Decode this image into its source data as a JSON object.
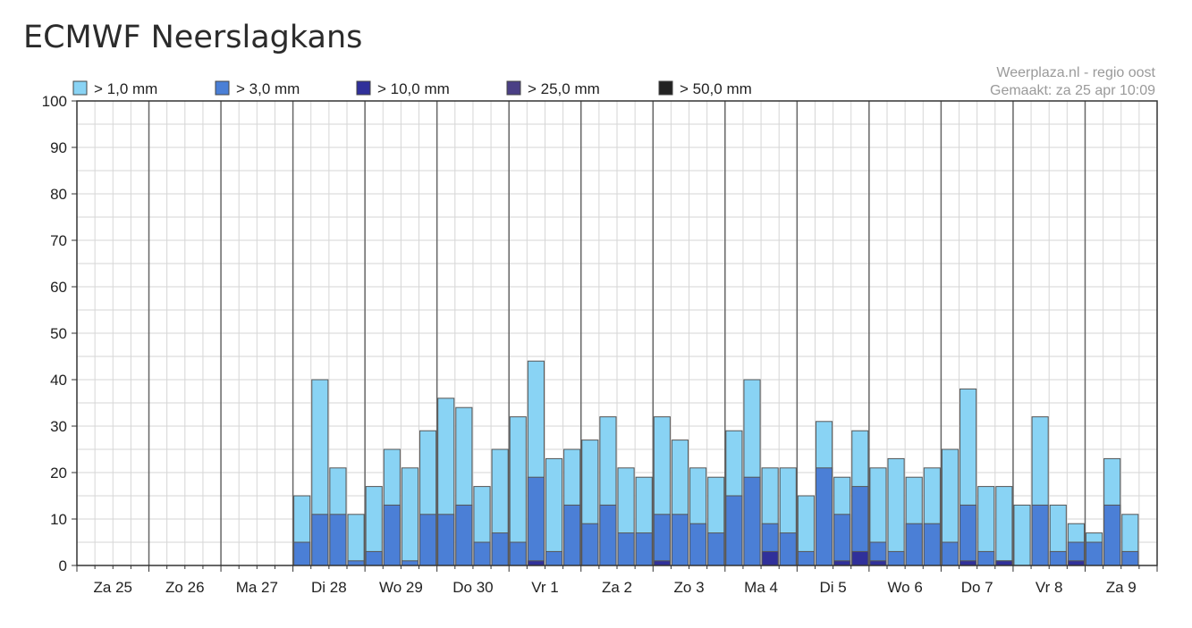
{
  "page": {
    "title": "ECMWF Neerslagkans"
  },
  "source": {
    "line1": "Weerplaza.nl - regio oost",
    "line2": "Gemaakt: za 25 apr 10:09"
  },
  "colors": {
    "gt1": "#89d3f4",
    "gt3": "#4b7fd6",
    "gt10": "#30309a",
    "gt25": "#4a3f85",
    "gt50": "#222222",
    "grid": "#d6d6d6",
    "dayline": "#666666",
    "axis": "#333333",
    "barstroke": "#555555"
  },
  "chart_data": {
    "type": "bar",
    "stacked": false,
    "title": "ECMWF Neerslagkans",
    "xlabel": "",
    "ylabel": "",
    "ylim": [
      0,
      100
    ],
    "yticks": [
      0,
      10,
      20,
      30,
      40,
      50,
      60,
      70,
      80,
      90,
      100
    ],
    "grid": true,
    "legend_position": "top",
    "days": [
      "Za 25",
      "Zo 26",
      "Ma 27",
      "Di 28",
      "Wo 29",
      "Do 30",
      "Vr 1",
      "Za 2",
      "Zo 3",
      "Ma 4",
      "Di 5",
      "Wo 6",
      "Do 7",
      "Vr 8",
      "Za 9"
    ],
    "bars_per_day": 4,
    "series": [
      {
        "name": "> 1,0 mm",
        "color": "#89d3f4",
        "values": [
          0,
          0,
          0,
          0,
          0,
          0,
          0,
          0,
          0,
          0,
          0,
          0,
          15,
          40,
          21,
          11,
          17,
          25,
          21,
          29,
          36,
          34,
          17,
          25,
          32,
          44,
          23,
          25,
          27,
          32,
          21,
          19,
          32,
          27,
          21,
          19,
          29,
          40,
          21,
          21,
          15,
          31,
          19,
          29,
          21,
          23,
          19,
          21,
          25,
          38,
          17,
          17,
          13,
          32,
          13,
          9,
          7,
          23,
          11
        ]
      },
      {
        "name": "> 3,0 mm",
        "color": "#4b7fd6",
        "values": [
          0,
          0,
          0,
          0,
          0,
          0,
          0,
          0,
          0,
          0,
          0,
          0,
          5,
          11,
          11,
          1,
          3,
          13,
          1,
          11,
          11,
          13,
          5,
          7,
          5,
          19,
          3,
          13,
          9,
          13,
          7,
          7,
          11,
          11,
          9,
          7,
          15,
          19,
          9,
          7,
          3,
          21,
          11,
          17,
          5,
          3,
          9,
          9,
          5,
          13,
          3,
          1,
          0,
          13,
          3,
          5,
          5,
          13,
          3
        ]
      },
      {
        "name": "> 10,0 mm",
        "color": "#30309a",
        "values": [
          0,
          0,
          0,
          0,
          0,
          0,
          0,
          0,
          0,
          0,
          0,
          0,
          0,
          0,
          0,
          0,
          0,
          0,
          0,
          0,
          0,
          0,
          0,
          0,
          0,
          1,
          0,
          0,
          0,
          0,
          0,
          0,
          1,
          0,
          0,
          0,
          0,
          0,
          3,
          0,
          0,
          0,
          1,
          3,
          1,
          0,
          0,
          0,
          0,
          1,
          0,
          1,
          0,
          0,
          0,
          1,
          0,
          0,
          0
        ]
      },
      {
        "name": "> 25,0 mm",
        "color": "#4a3f85",
        "values": [
          0,
          0,
          0,
          0,
          0,
          0,
          0,
          0,
          0,
          0,
          0,
          0,
          0,
          0,
          0,
          0,
          0,
          0,
          0,
          0,
          0,
          0,
          0,
          0,
          0,
          0,
          0,
          0,
          0,
          0,
          0,
          0,
          0,
          0,
          0,
          0,
          0,
          0,
          0,
          0,
          0,
          0,
          0,
          0,
          0,
          0,
          0,
          0,
          0,
          0,
          0,
          0,
          0,
          0,
          0,
          0,
          0,
          0,
          0
        ]
      },
      {
        "name": "> 50,0 mm",
        "color": "#222222",
        "values": [
          0,
          0,
          0,
          0,
          0,
          0,
          0,
          0,
          0,
          0,
          0,
          0,
          0,
          0,
          0,
          0,
          0,
          0,
          0,
          0,
          0,
          0,
          0,
          0,
          0,
          0,
          0,
          0,
          0,
          0,
          0,
          0,
          0,
          0,
          0,
          0,
          0,
          0,
          0,
          0,
          0,
          0,
          0,
          0,
          0,
          0,
          0,
          0,
          0,
          0,
          0,
          0,
          0,
          0,
          0,
          0,
          0,
          0,
          0
        ]
      }
    ]
  }
}
